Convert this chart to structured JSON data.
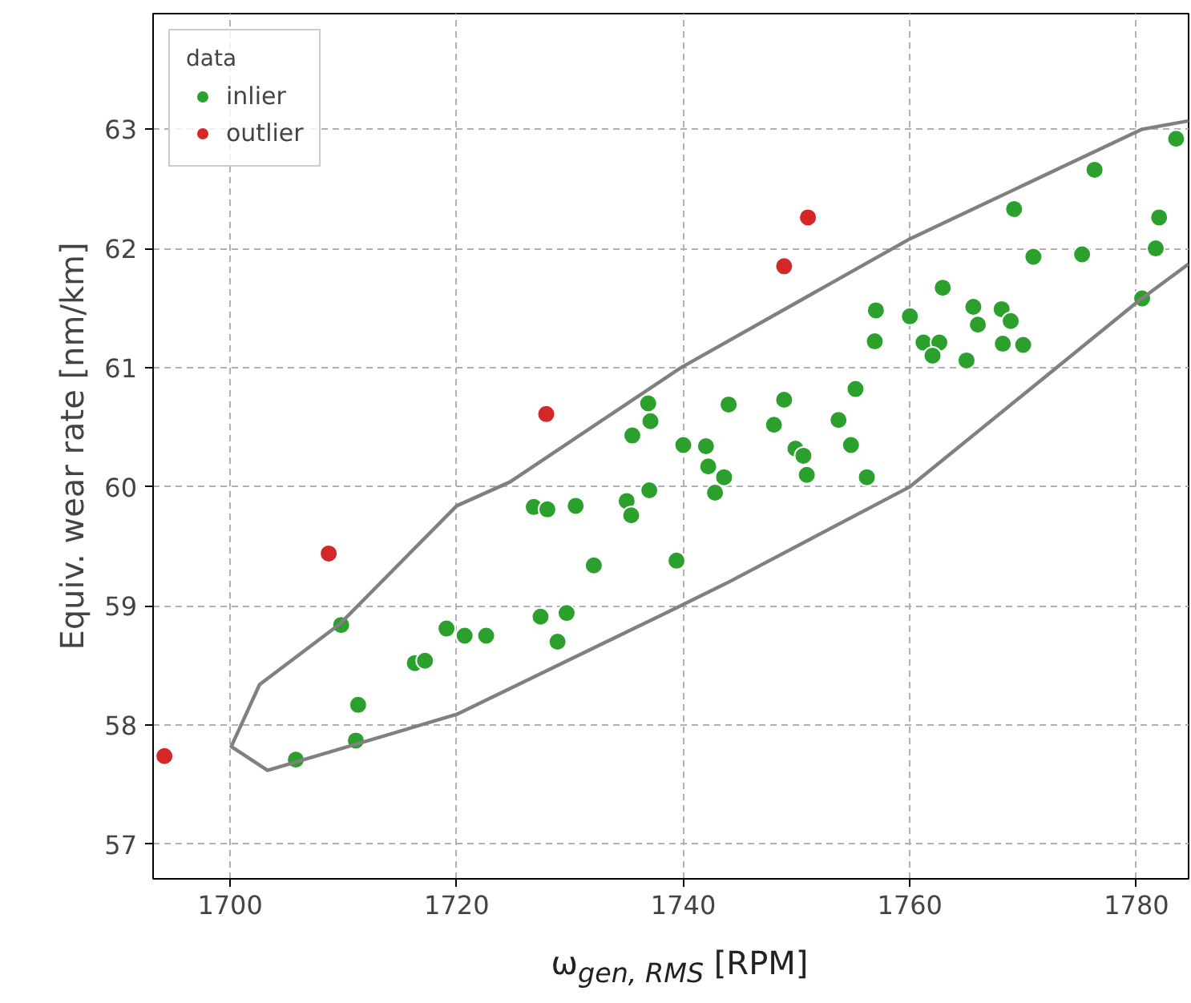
{
  "chart_data": {
    "type": "scatter",
    "xlabel": "ω$_{gen, RMS}$ [RPM]",
    "ylabel": "Equiv. wear rate [nm/km]",
    "legend_title": "data",
    "legend": "top left",
    "grid": true,
    "line_style": "dashed",
    "marker": "circle",
    "xlim": [
      1693.2,
      1784.6
    ],
    "ylim": [
      56.71,
      63.97
    ],
    "xticks": [
      1700,
      1720,
      1740,
      1760,
      1780
    ],
    "yticks": [
      57,
      58,
      59,
      60,
      61,
      62,
      63
    ],
    "series": [
      {
        "name": "inlier",
        "color": "#2ca02c",
        "x": [
          1709.8,
          1705.8,
          1711.3,
          1711.1,
          1716.3,
          1717.2,
          1719.1,
          1720.7,
          1722.6,
          1727.4,
          1729.7,
          1728.9,
          1732.1,
          1739.4,
          1726.8,
          1728.0,
          1730.5,
          1735.0,
          1735.4,
          1737.0,
          1736.9,
          1737.1,
          1735.5,
          1740.0,
          1742.0,
          1742.2,
          1743.6,
          1742.8,
          1744.0,
          1748.0,
          1748.9,
          1749.9,
          1750.6,
          1750.9,
          1753.7,
          1754.8,
          1755.2,
          1756.2,
          1756.9,
          1757.0,
          1760.0,
          1761.2,
          1762.6,
          1762.0,
          1762.9,
          1765.0,
          1765.6,
          1766.0,
          1768.1,
          1768.9,
          1768.2,
          1770.0,
          1769.2,
          1770.9,
          1775.2,
          1776.3,
          1780.5,
          1781.7,
          1782.0,
          1783.5
        ],
        "values": [
          58.84,
          57.71,
          58.17,
          57.87,
          58.52,
          58.54,
          58.81,
          58.75,
          58.75,
          58.91,
          58.94,
          58.7,
          59.34,
          59.38,
          59.83,
          59.81,
          59.84,
          59.88,
          59.76,
          59.97,
          60.7,
          60.55,
          60.43,
          60.35,
          60.34,
          60.17,
          60.08,
          59.95,
          60.69,
          60.52,
          60.73,
          60.32,
          60.26,
          60.1,
          60.56,
          60.35,
          60.82,
          60.08,
          61.22,
          61.48,
          61.43,
          61.21,
          61.21,
          61.1,
          61.67,
          61.06,
          61.51,
          61.36,
          61.49,
          61.39,
          61.2,
          61.19,
          62.33,
          61.93,
          61.95,
          62.66,
          61.58,
          62.0,
          62.26,
          62.92
        ]
      },
      {
        "name": "outlier",
        "color": "#d62728",
        "x": [
          1694.2,
          1708.7,
          1727.9,
          1748.9,
          1751.0
        ],
        "values": [
          57.74,
          59.44,
          60.61,
          61.85,
          62.26
        ]
      },
      {
        "type": "line",
        "color": "#808080",
        "line_style": "solid",
        "marker": "none",
        "x": [
          1784.6,
          1780.2,
          1760.0,
          1743.8,
          1739.1,
          1720.0,
          1703.3,
          1700.1,
          1702.6,
          1709.7,
          1720.0,
          1724.7,
          1739.8,
          1760.0,
          1780.5,
          1784.6
        ],
        "values": [
          61.87,
          61.56,
          60.0,
          59.19,
          58.97,
          58.09,
          57.62,
          57.82,
          58.34,
          58.85,
          59.84,
          60.04,
          61.0,
          62.08,
          63.0,
          63.07
        ]
      }
    ]
  }
}
